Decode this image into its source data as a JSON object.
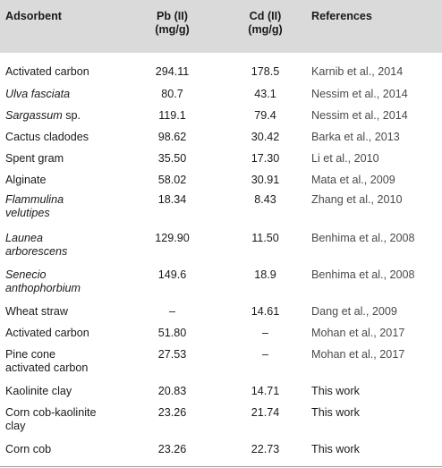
{
  "columns": {
    "adsorbent": "Adsorbent",
    "pb_line1": "Pb (II)",
    "pb_line2": "(mg/g)",
    "cd_line1": "Cd (II)",
    "cd_line2": "(mg/g)",
    "references": "References"
  },
  "rows": [
    {
      "adsorbent": "Activated carbon",
      "pb": "294.11",
      "cd": "178.5",
      "ref": "Karnib et al., 2014"
    },
    {
      "adsorbent": "Ulva fasciata",
      "pb": "80.7",
      "cd": "43.1",
      "ref": "Nessim et al., 2014"
    },
    {
      "adsorbent": "Sargassum sp.",
      "adsorbent_italic": "Sargassum",
      "adsorbent_plain": " sp.",
      "pb": "119.1",
      "cd": "79.4",
      "ref": "Nessim et al., 2014"
    },
    {
      "adsorbent": "Cactus cladodes",
      "pb": "98.62",
      "cd": "30.42",
      "ref": "Barka et al., 2013"
    },
    {
      "adsorbent": "Spent gram",
      "pb": "35.50",
      "cd": "17.30",
      "ref": "Li et al., 2010"
    },
    {
      "adsorbent": "Alginate",
      "pb": "58.02",
      "cd": "30.91",
      "ref": "Mata et al., 2009"
    },
    {
      "adsorbent_line1": "Flammulina",
      "adsorbent_line2": "velutipes",
      "pb": "18.34",
      "cd": "8.43",
      "ref": "Zhang et al., 2010"
    },
    {
      "adsorbent_line1": "Launea",
      "adsorbent_line2": "arborescens",
      "pb": "129.90",
      "cd": "11.50",
      "ref": "Benhima et al., 2008"
    },
    {
      "adsorbent_line1": "Senecio",
      "adsorbent_line2": "anthophorbium",
      "pb": "149.6",
      "cd": "18.9",
      "ref": "Benhima et al., 2008"
    },
    {
      "adsorbent": "Wheat straw",
      "pb": "–",
      "cd": "14.61",
      "ref": "Dang et al., 2009"
    },
    {
      "adsorbent": "Activated carbon",
      "pb": "51.80",
      "cd": "–",
      "ref": "Mohan et al., 2017"
    },
    {
      "adsorbent_line1": "Pine cone",
      "adsorbent_line2": "activated carbon",
      "pb": "27.53",
      "cd": "–",
      "ref": "Mohan et al., 2017"
    },
    {
      "adsorbent": "Kaolinite clay",
      "pb": "20.83",
      "cd": "14.71",
      "ref": "This work"
    },
    {
      "adsorbent_line1": "Corn cob-kaolinite",
      "adsorbent_line2": "clay",
      "pb": "23.26",
      "cd": "21.74",
      "ref": "This work"
    },
    {
      "adsorbent": "Corn cob",
      "pb": "23.26",
      "cd": "22.73",
      "ref": "This work"
    }
  ]
}
